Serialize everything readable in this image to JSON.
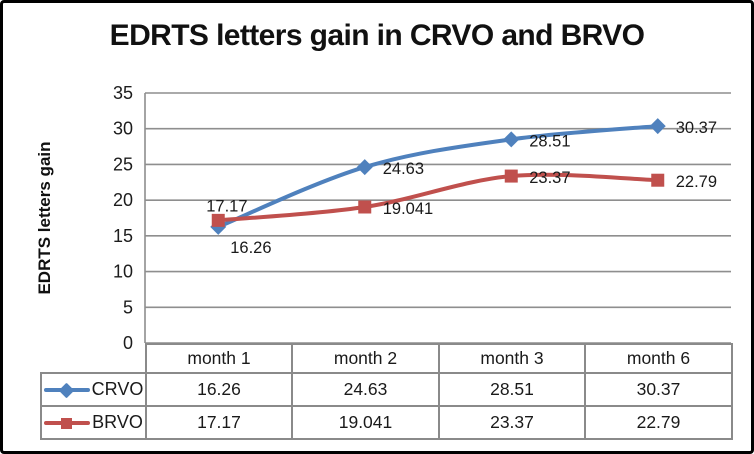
{
  "chart_data": {
    "type": "line",
    "title": "EDRTS letters gain in CRVO and BRVO",
    "xlabel": "",
    "ylabel": "EDRTS letters gain",
    "categories": [
      "month 1",
      "month 2",
      "month 3",
      "month 6"
    ],
    "series": [
      {
        "name": "CRVO",
        "values": [
          16.26,
          24.63,
          28.51,
          30.37
        ],
        "color": "#4F81BD",
        "marker": "diamond",
        "label_placement": [
          "below",
          "right",
          "right",
          "right"
        ]
      },
      {
        "name": "BRVO",
        "values": [
          17.17,
          19.041,
          23.37,
          22.79
        ],
        "color": "#C0504D",
        "marker": "square",
        "label_placement": [
          "above",
          "right",
          "right",
          "right"
        ]
      }
    ],
    "ylim": [
      0,
      35
    ],
    "y_ticks": [
      0,
      5,
      10,
      15,
      20,
      25,
      30,
      35
    ],
    "grid": "horizontal",
    "smooth_lines": true,
    "legend_position": "data-table",
    "data_table": true
  },
  "colors": {
    "gridline": "#8e8e8e",
    "table_border": "#8a8a8a",
    "text": "#1c1c1c",
    "crvo_blue": "#4F81BD",
    "brvo_red": "#C0504D"
  }
}
